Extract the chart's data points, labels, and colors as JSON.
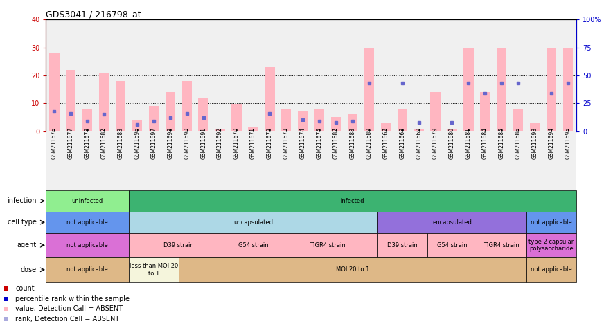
{
  "title": "GDS3041 / 216798_at",
  "samples": [
    "GSM211676",
    "GSM211677",
    "GSM211678",
    "GSM211682",
    "GSM211683",
    "GSM211696",
    "GSM211697",
    "GSM211698",
    "GSM211690",
    "GSM211691",
    "GSM211692",
    "GSM211670",
    "GSM211671",
    "GSM211672",
    "GSM211673",
    "GSM211674",
    "GSM211675",
    "GSM211687",
    "GSM211688",
    "GSM211689",
    "GSM211667",
    "GSM211668",
    "GSM211669",
    "GSM211679",
    "GSM211680",
    "GSM211681",
    "GSM211684",
    "GSM211685",
    "GSM211686",
    "GSM211693",
    "GSM211694",
    "GSM211695"
  ],
  "pink_values": [
    28,
    22,
    8,
    21,
    18,
    4,
    9,
    14,
    18,
    12,
    1,
    9.5,
    1.5,
    23,
    8,
    7,
    8,
    5,
    6,
    30,
    3,
    8,
    1,
    14,
    1,
    30,
    14,
    30,
    8,
    3,
    30,
    30
  ],
  "blue_values": [
    18,
    16,
    9,
    15,
    null,
    6,
    9,
    12,
    16,
    12,
    null,
    null,
    null,
    16,
    null,
    10,
    9,
    8,
    9,
    43,
    null,
    43,
    8,
    null,
    8,
    43,
    34,
    43,
    43,
    null,
    34,
    43
  ],
  "left_ylim": [
    0,
    40
  ],
  "right_ylim": [
    0,
    100
  ],
  "left_yticks": [
    0,
    10,
    20,
    30,
    40
  ],
  "right_yticks": [
    0,
    25,
    50,
    75,
    100
  ],
  "infection_groups": [
    {
      "label": "uninfected",
      "start": 0,
      "end": 5,
      "color": "#90ee90"
    },
    {
      "label": "infected",
      "start": 5,
      "end": 32,
      "color": "#3cb371"
    }
  ],
  "celltype_groups": [
    {
      "label": "not applicable",
      "start": 0,
      "end": 5,
      "color": "#6495ed"
    },
    {
      "label": "uncapsulated",
      "start": 5,
      "end": 20,
      "color": "#add8e6"
    },
    {
      "label": "encapsulated",
      "start": 20,
      "end": 29,
      "color": "#9370db"
    },
    {
      "label": "not applicable",
      "start": 29,
      "end": 32,
      "color": "#6495ed"
    }
  ],
  "agent_groups": [
    {
      "label": "not applicable",
      "start": 0,
      "end": 5,
      "color": "#da70d6"
    },
    {
      "label": "D39 strain",
      "start": 5,
      "end": 11,
      "color": "#ffb6c1"
    },
    {
      "label": "G54 strain",
      "start": 11,
      "end": 14,
      "color": "#ffb6c1"
    },
    {
      "label": "TIGR4 strain",
      "start": 14,
      "end": 20,
      "color": "#ffb6c1"
    },
    {
      "label": "D39 strain",
      "start": 20,
      "end": 23,
      "color": "#ffb6c1"
    },
    {
      "label": "G54 strain",
      "start": 23,
      "end": 26,
      "color": "#ffb6c1"
    },
    {
      "label": "TIGR4 strain",
      "start": 26,
      "end": 29,
      "color": "#ffb6c1"
    },
    {
      "label": "type 2 capsular\npolysaccharide",
      "start": 29,
      "end": 32,
      "color": "#da70d6"
    }
  ],
  "dose_groups": [
    {
      "label": "not applicable",
      "start": 0,
      "end": 5,
      "color": "#deb887"
    },
    {
      "label": "less than MOI 20\nto 1",
      "start": 5,
      "end": 8,
      "color": "#f5f5dc"
    },
    {
      "label": "MOI 20 to 1",
      "start": 8,
      "end": 29,
      "color": "#deb887"
    },
    {
      "label": "not applicable",
      "start": 29,
      "end": 32,
      "color": "#deb887"
    }
  ],
  "bar_color_pink": "#ffb6c1",
  "bar_color_blue": "#6666cc",
  "axis_color_left": "#cc0000",
  "axis_color_right": "#0000cc",
  "bg_color": "#f0f0f0",
  "legend_items": [
    {
      "color": "#cc0000",
      "label": "count"
    },
    {
      "color": "#0000cc",
      "label": "percentile rank within the sample"
    },
    {
      "color": "#ffb6c1",
      "label": "value, Detection Call = ABSENT"
    },
    {
      "color": "#aaaadd",
      "label": "rank, Detection Call = ABSENT"
    }
  ]
}
